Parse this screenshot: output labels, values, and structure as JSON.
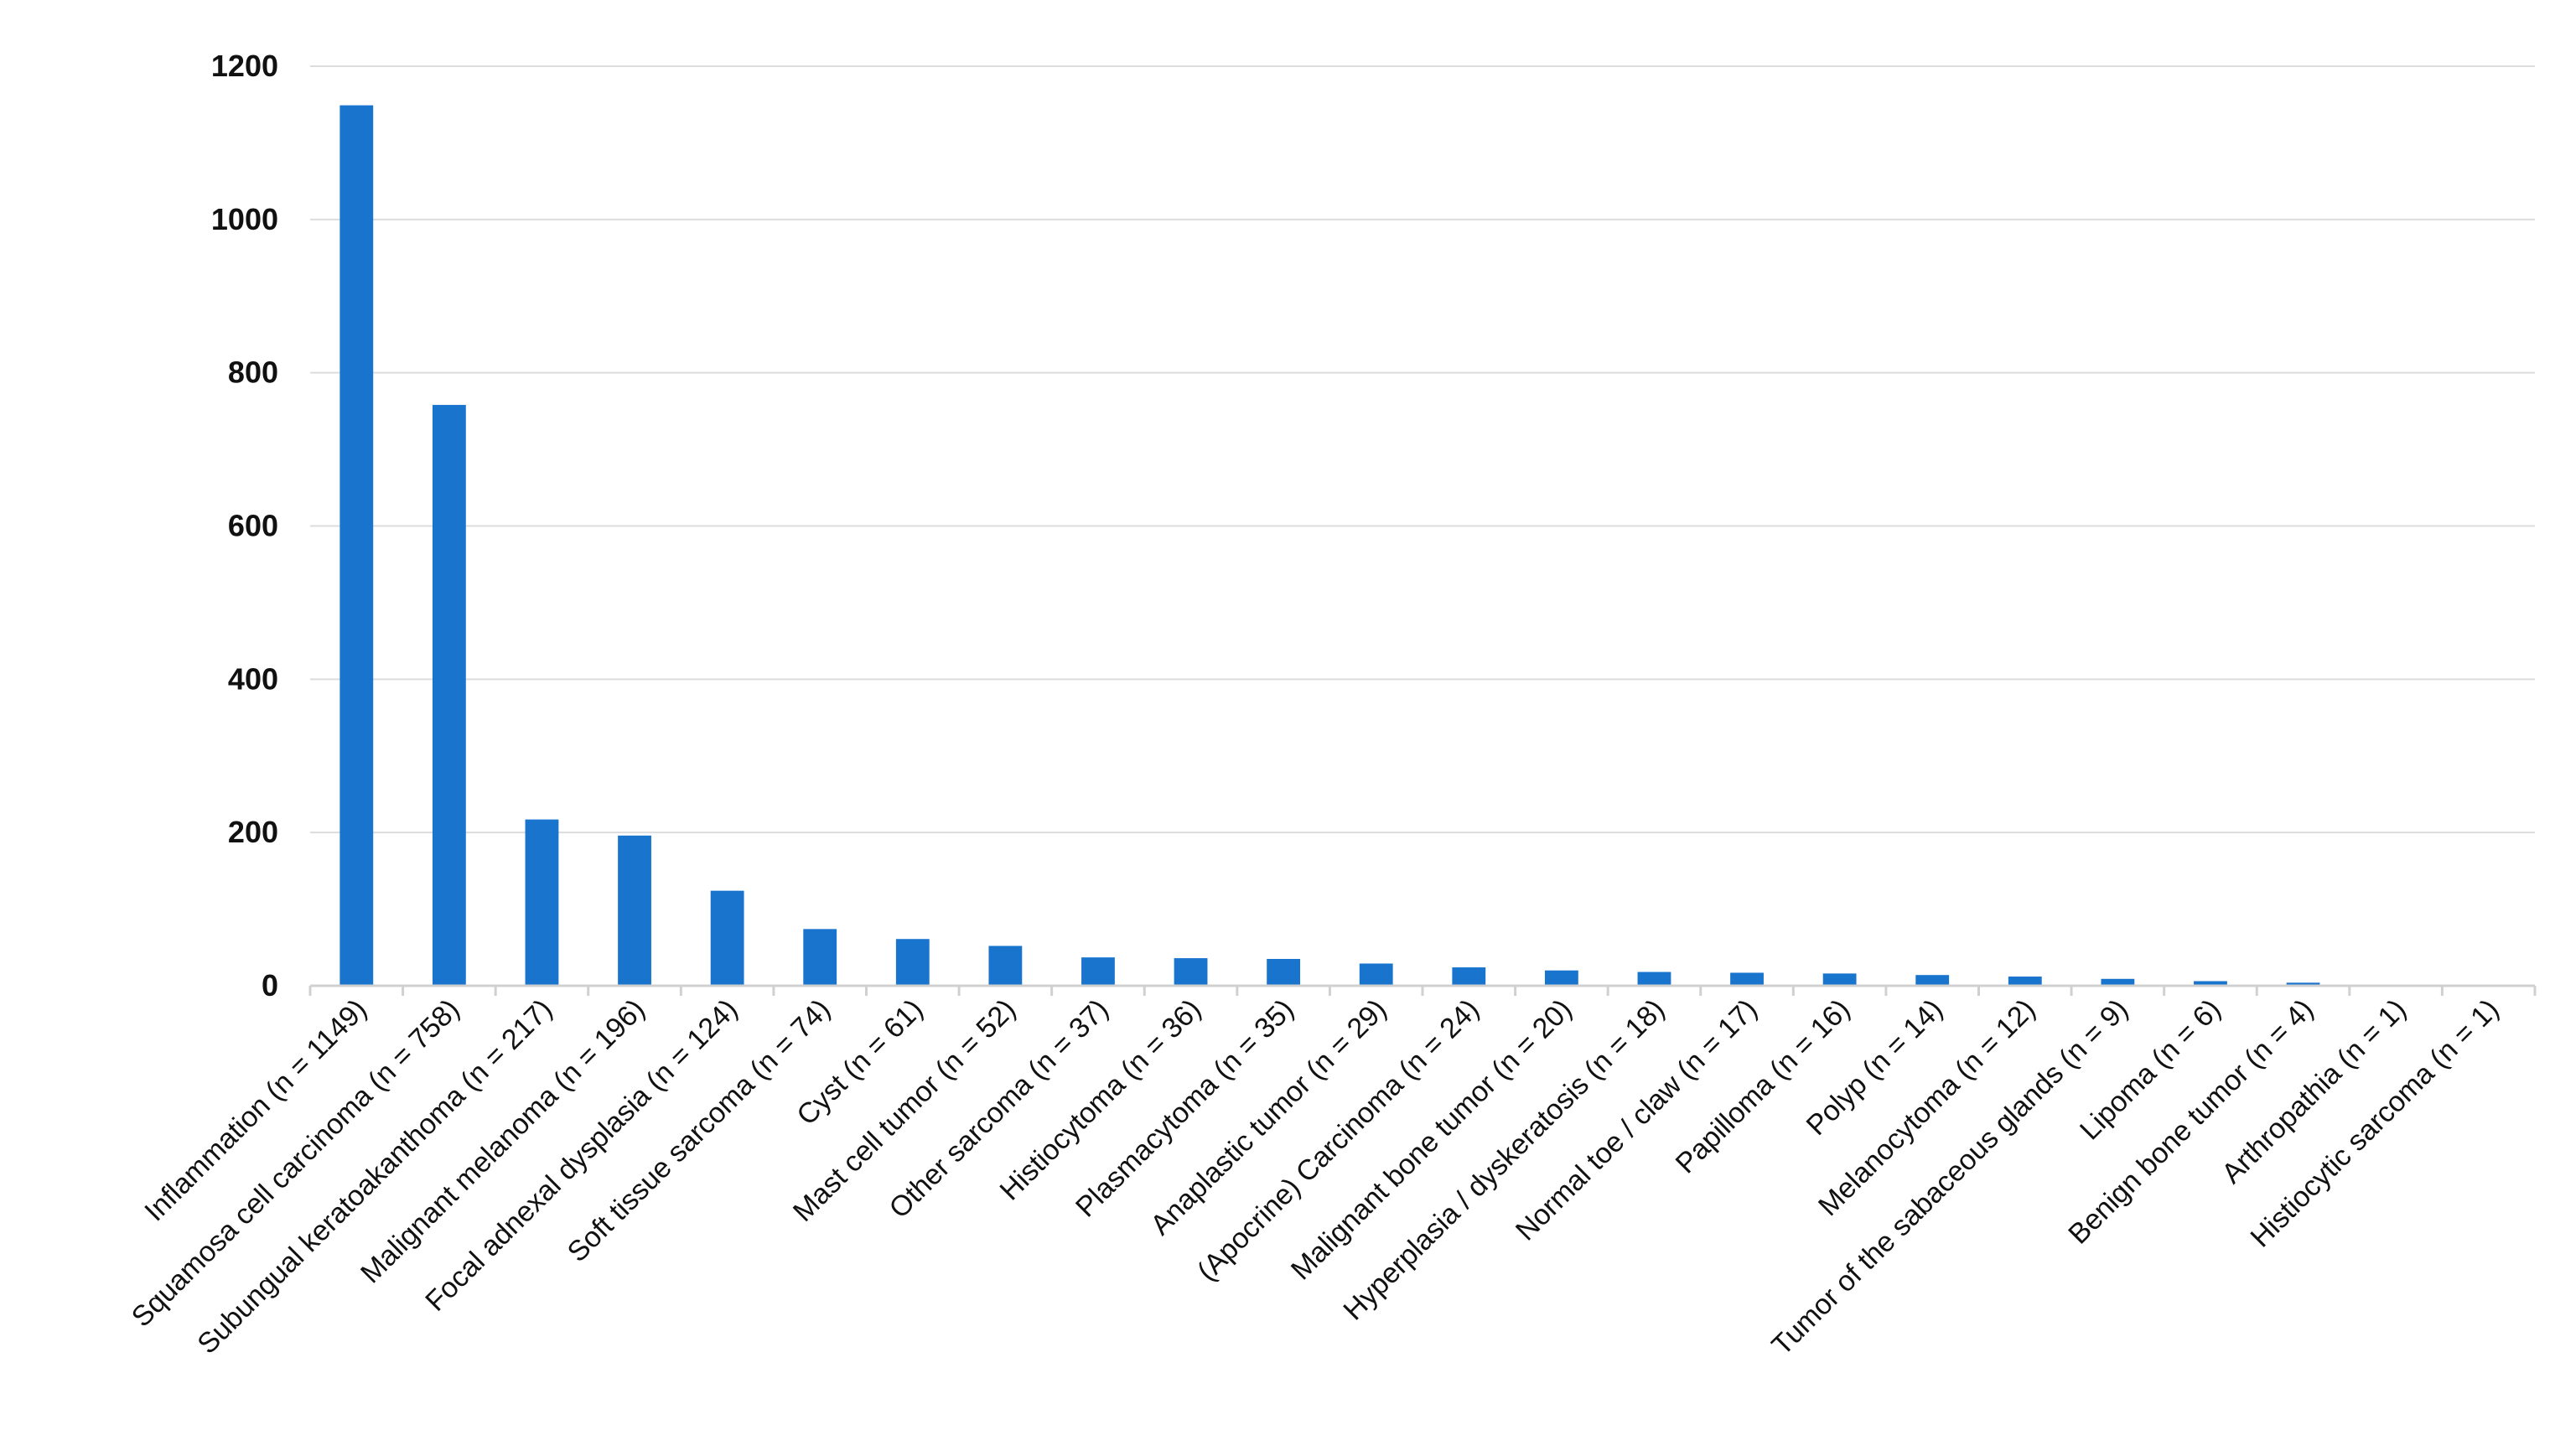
{
  "chart_data": {
    "type": "bar",
    "title": "",
    "xlabel": "",
    "ylabel": "",
    "ylim": [
      0,
      1200
    ],
    "yticks": [
      "0",
      "200",
      "400",
      "600",
      "800",
      "1000",
      "1200"
    ],
    "grid": true,
    "bar_color": "#1874CD",
    "categories": [
      "Inflammation (n = 1149)",
      "Squamosa cell carcinoma (n = 758)",
      "Subungual keratoakanthoma (n = 217)",
      "Malignant melanoma (n = 196)",
      "Focal adnexal dysplasia  (n = 124)",
      "Soft tissue sarcoma (n = 74)",
      "Cyst  (n = 61)",
      "Mast cell tumor (n = 52)",
      "Other sarcoma (n = 37)",
      "Histiocytoma (n = 36)",
      "Plasmacytoma (n = 35)",
      "Anaplastic tumor  (n = 29)",
      "(Apocrine) Carcinoma (n = 24)",
      "Malignant bone tumor (n = 20)",
      "Hyperplasia / dyskeratosis  (n = 18)",
      "Normal toe / claw (n = 17)",
      "Papilloma (n = 16)",
      "Polyp  (n = 14)",
      "Melanocytoma (n = 12)",
      "Tumor of the sabaceous glands (n = 9)",
      "Lipoma  (n = 6)",
      "Benign bone tumor  (n = 4)",
      "Arthropathia  (n = 1)",
      "Histiocytic sarcoma  (n = 1)"
    ],
    "values": [
      1149,
      758,
      217,
      196,
      124,
      74,
      61,
      52,
      37,
      36,
      35,
      29,
      24,
      20,
      18,
      17,
      16,
      14,
      12,
      9,
      6,
      4,
      1,
      1
    ]
  }
}
